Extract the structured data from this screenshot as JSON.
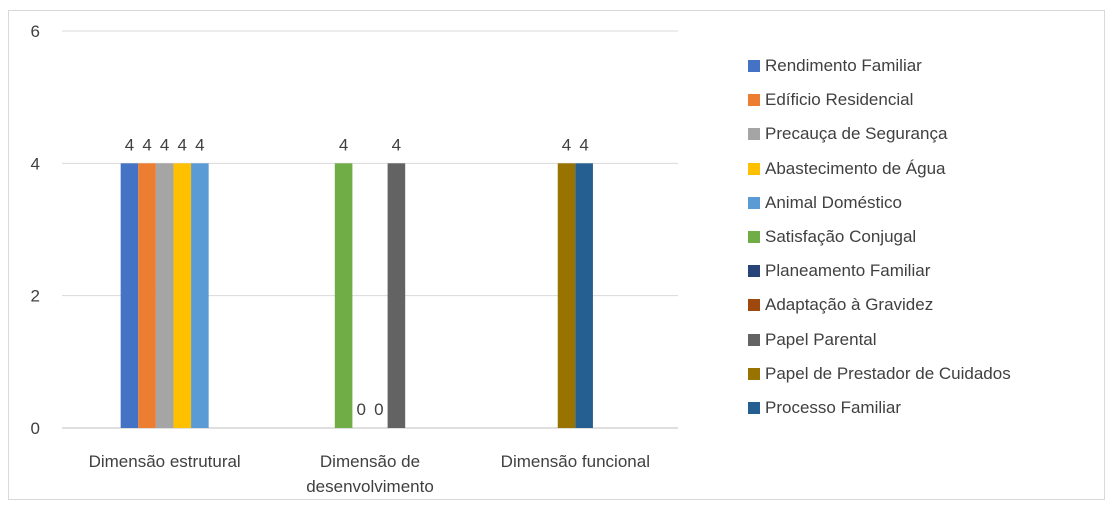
{
  "chart_data": {
    "type": "bar",
    "categories": [
      "Dimensão estrutural",
      "Dimensão de desenvolvimento",
      "Dimensão funcional"
    ],
    "category_lines": [
      [
        "Dimensão estrutural"
      ],
      [
        "Dimensão de",
        "desenvolvimento"
      ],
      [
        "Dimensão funcional"
      ]
    ],
    "ylim": [
      0,
      6
    ],
    "yticks": [
      0,
      2,
      4,
      6
    ],
    "grid": true,
    "legend_position": "right",
    "series": [
      {
        "name": "Rendimento Familiar",
        "color": "#4472c4",
        "values": [
          4,
          null,
          null
        ]
      },
      {
        "name": "Edíficio Residencial",
        "color": "#ed7d31",
        "values": [
          4,
          null,
          null
        ]
      },
      {
        "name": "Precauça de Segurança",
        "color": "#a5a5a5",
        "values": [
          4,
          null,
          null
        ]
      },
      {
        "name": "Abastecimento de Água",
        "color": "#ffc000",
        "values": [
          4,
          null,
          null
        ]
      },
      {
        "name": "Animal Doméstico",
        "color": "#5b9bd5",
        "values": [
          4,
          null,
          null
        ]
      },
      {
        "name": "Satisfação Conjugal",
        "color": "#70ad47",
        "values": [
          null,
          4,
          null
        ]
      },
      {
        "name": "Planeamento Familiar",
        "color": "#264478",
        "values": [
          null,
          0,
          null
        ]
      },
      {
        "name": "Adaptação à Gravidez",
        "color": "#9e480e",
        "values": [
          null,
          0,
          null
        ]
      },
      {
        "name": "Papel Parental",
        "color": "#636363",
        "values": [
          null,
          4,
          null
        ]
      },
      {
        "name": "Papel de Prestador de Cuidados",
        "color": "#997300",
        "values": [
          null,
          null,
          4
        ]
      },
      {
        "name": "Processo Familiar",
        "color": "#255e91",
        "values": [
          null,
          null,
          4
        ]
      }
    ]
  }
}
